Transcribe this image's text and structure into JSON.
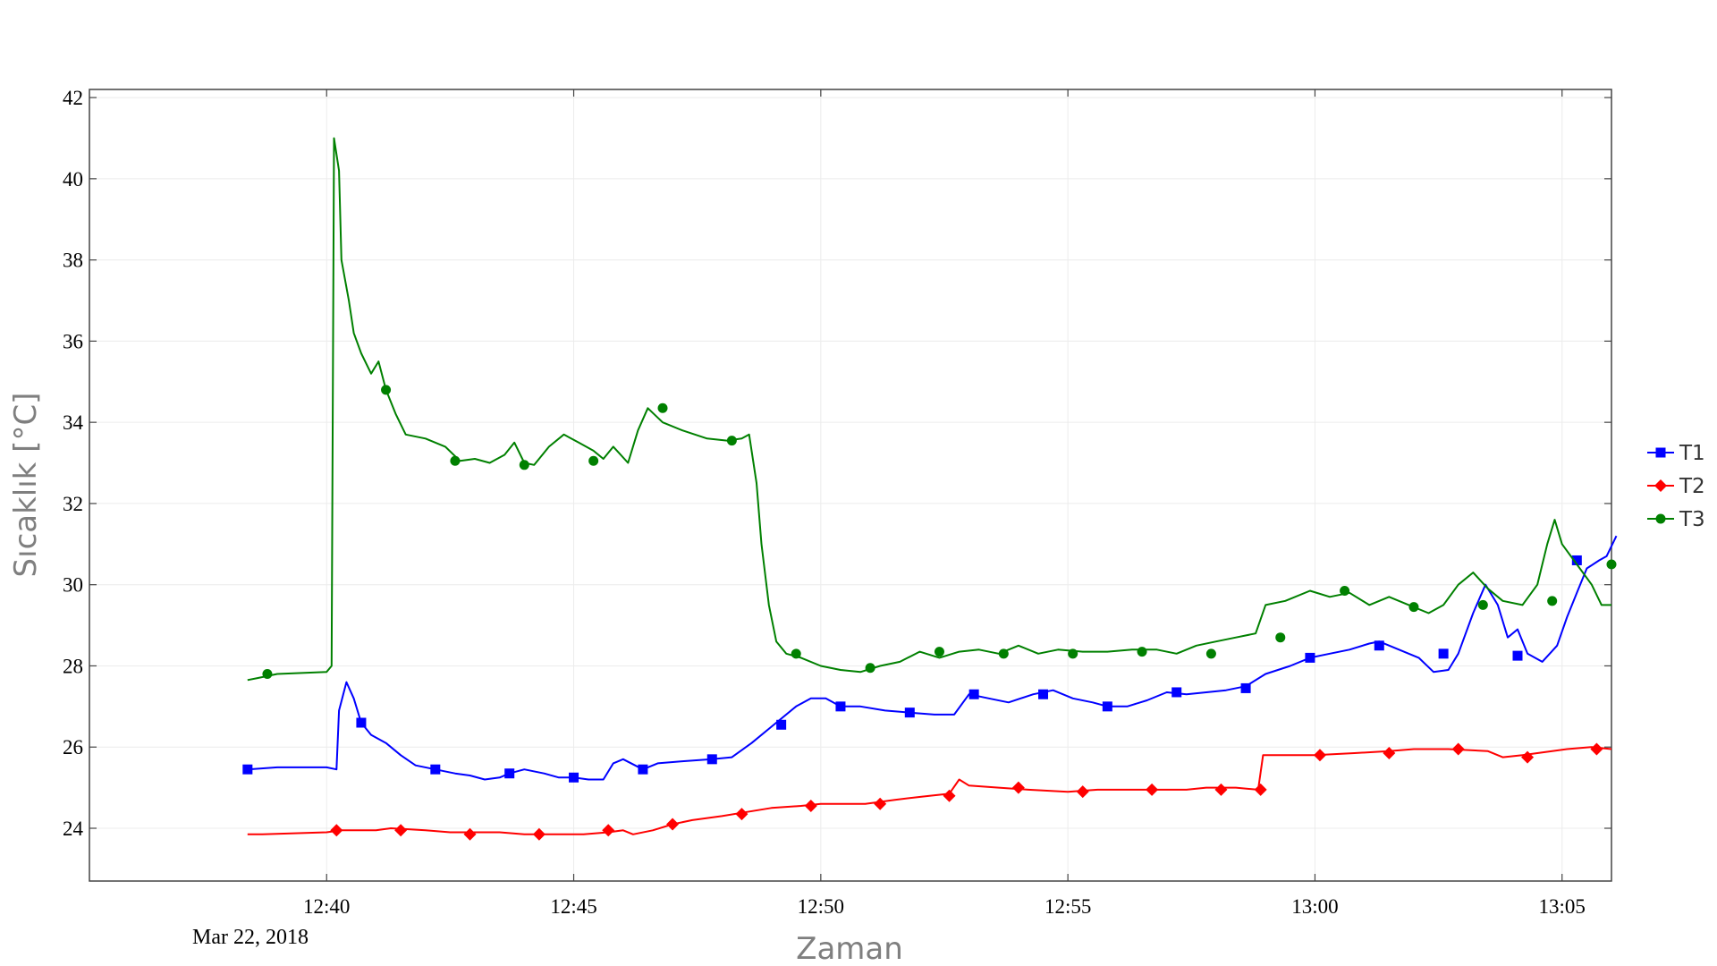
{
  "chart_data": {
    "type": "line",
    "xlabel": "Zaman",
    "ylabel": "Sıcaklık [°C]",
    "date_label": "Mar 22, 2018",
    "x_ticks": [
      "12:40",
      "12:45",
      "12:50",
      "12:55",
      "13:00",
      "13:05"
    ],
    "x_tick_minutes": [
      40,
      45,
      50,
      55,
      60,
      65
    ],
    "xlim_minutes": [
      35.2,
      66.0
    ],
    "ylim": [
      22.7,
      42.2
    ],
    "y_ticks": [
      24,
      26,
      28,
      30,
      32,
      34,
      36,
      38,
      40,
      42
    ],
    "grid": true,
    "legend_position": "right",
    "series": [
      {
        "name": "T1",
        "color": "#0000ff",
        "marker": "square",
        "points": [
          [
            38.4,
            25.45
          ],
          [
            39.0,
            25.5
          ],
          [
            40.0,
            25.5
          ],
          [
            40.2,
            25.45
          ],
          [
            40.25,
            26.9
          ],
          [
            40.4,
            27.6
          ],
          [
            40.55,
            27.2
          ],
          [
            40.7,
            26.6
          ],
          [
            40.9,
            26.3
          ],
          [
            41.2,
            26.1
          ],
          [
            41.5,
            25.8
          ],
          [
            41.8,
            25.55
          ],
          [
            42.2,
            25.45
          ],
          [
            42.6,
            25.35
          ],
          [
            42.9,
            25.3
          ],
          [
            43.2,
            25.2
          ],
          [
            43.5,
            25.25
          ],
          [
            43.7,
            25.35
          ],
          [
            44.0,
            25.45
          ],
          [
            44.4,
            25.35
          ],
          [
            44.7,
            25.25
          ],
          [
            45.0,
            25.25
          ],
          [
            45.3,
            25.2
          ],
          [
            45.6,
            25.2
          ],
          [
            45.8,
            25.6
          ],
          [
            46.0,
            25.7
          ],
          [
            46.4,
            25.45
          ],
          [
            46.7,
            25.6
          ],
          [
            47.2,
            25.65
          ],
          [
            47.8,
            25.7
          ],
          [
            48.2,
            25.75
          ],
          [
            48.6,
            26.1
          ],
          [
            49.0,
            26.5
          ],
          [
            49.5,
            27.0
          ],
          [
            49.8,
            27.2
          ],
          [
            50.1,
            27.2
          ],
          [
            50.4,
            27.0
          ],
          [
            50.8,
            27.0
          ],
          [
            51.3,
            26.9
          ],
          [
            51.8,
            26.85
          ],
          [
            52.3,
            26.8
          ],
          [
            52.7,
            26.8
          ],
          [
            53.0,
            27.3
          ],
          [
            53.4,
            27.2
          ],
          [
            53.8,
            27.1
          ],
          [
            54.3,
            27.3
          ],
          [
            54.7,
            27.4
          ],
          [
            55.1,
            27.2
          ],
          [
            55.5,
            27.1
          ],
          [
            55.8,
            27.0
          ],
          [
            56.2,
            27.0
          ],
          [
            56.6,
            27.15
          ],
          [
            57.0,
            27.35
          ],
          [
            57.4,
            27.3
          ],
          [
            57.8,
            27.35
          ],
          [
            58.2,
            27.4
          ],
          [
            58.6,
            27.5
          ],
          [
            59.0,
            27.8
          ],
          [
            59.5,
            28.0
          ],
          [
            59.9,
            28.2
          ],
          [
            60.3,
            28.3
          ],
          [
            60.7,
            28.4
          ],
          [
            61.1,
            28.55
          ],
          [
            61.3,
            28.6
          ],
          [
            61.7,
            28.4
          ],
          [
            62.1,
            28.2
          ],
          [
            62.4,
            27.85
          ],
          [
            62.7,
            27.9
          ],
          [
            62.9,
            28.3
          ],
          [
            63.2,
            29.3
          ],
          [
            63.45,
            30.0
          ],
          [
            63.7,
            29.5
          ],
          [
            63.9,
            28.7
          ],
          [
            64.1,
            28.9
          ],
          [
            64.3,
            28.3
          ],
          [
            64.6,
            28.1
          ],
          [
            64.9,
            28.5
          ],
          [
            65.1,
            29.2
          ],
          [
            65.3,
            29.8
          ],
          [
            65.5,
            30.4
          ],
          [
            65.75,
            30.6
          ],
          [
            65.9,
            30.7
          ],
          [
            66.1,
            31.2
          ]
        ],
        "markers": [
          [
            38.4,
            25.45
          ],
          [
            40.7,
            26.6
          ],
          [
            42.2,
            25.45
          ],
          [
            43.7,
            25.35
          ],
          [
            45.0,
            25.25
          ],
          [
            46.4,
            25.45
          ],
          [
            47.8,
            25.7
          ],
          [
            49.2,
            26.55
          ],
          [
            50.4,
            27.0
          ],
          [
            51.8,
            26.85
          ],
          [
            53.1,
            27.3
          ],
          [
            54.5,
            27.3
          ],
          [
            55.8,
            27.0
          ],
          [
            57.2,
            27.35
          ],
          [
            58.6,
            27.45
          ],
          [
            59.9,
            28.2
          ],
          [
            61.3,
            28.5
          ],
          [
            62.6,
            28.3
          ],
          [
            64.1,
            28.25
          ],
          [
            65.3,
            30.6
          ]
        ]
      },
      {
        "name": "T2",
        "color": "#ff0000",
        "marker": "diamond",
        "points": [
          [
            38.4,
            23.85
          ],
          [
            38.7,
            23.85
          ],
          [
            40.0,
            23.9
          ],
          [
            40.3,
            23.95
          ],
          [
            41.0,
            23.95
          ],
          [
            41.3,
            24.0
          ],
          [
            42.0,
            23.95
          ],
          [
            42.5,
            23.9
          ],
          [
            43.5,
            23.9
          ],
          [
            44.0,
            23.85
          ],
          [
            45.2,
            23.85
          ],
          [
            45.7,
            23.9
          ],
          [
            46.0,
            23.95
          ],
          [
            46.2,
            23.85
          ],
          [
            46.6,
            23.95
          ],
          [
            47.0,
            24.1
          ],
          [
            47.4,
            24.2
          ],
          [
            48.0,
            24.3
          ],
          [
            48.5,
            24.4
          ],
          [
            49.0,
            24.5
          ],
          [
            49.6,
            24.55
          ],
          [
            50.0,
            24.6
          ],
          [
            50.9,
            24.6
          ],
          [
            51.5,
            24.7
          ],
          [
            52.2,
            24.8
          ],
          [
            52.6,
            24.85
          ],
          [
            52.8,
            25.2
          ],
          [
            53.0,
            25.05
          ],
          [
            53.6,
            25.0
          ],
          [
            54.2,
            24.95
          ],
          [
            55.0,
            24.9
          ],
          [
            55.6,
            24.95
          ],
          [
            56.4,
            24.95
          ],
          [
            57.4,
            24.95
          ],
          [
            57.8,
            25.0
          ],
          [
            58.4,
            25.0
          ],
          [
            58.85,
            24.95
          ],
          [
            58.95,
            25.8
          ],
          [
            59.5,
            25.8
          ],
          [
            60.0,
            25.8
          ],
          [
            60.8,
            25.85
          ],
          [
            61.5,
            25.9
          ],
          [
            62.0,
            25.95
          ],
          [
            62.7,
            25.95
          ],
          [
            63.5,
            25.9
          ],
          [
            63.8,
            25.75
          ],
          [
            64.2,
            25.8
          ],
          [
            64.8,
            25.9
          ],
          [
            65.1,
            25.95
          ],
          [
            65.6,
            26.0
          ],
          [
            66.0,
            25.95
          ]
        ],
        "markers": [
          [
            40.2,
            23.95
          ],
          [
            41.5,
            23.95
          ],
          [
            42.9,
            23.85
          ],
          [
            44.3,
            23.85
          ],
          [
            45.7,
            23.95
          ],
          [
            47.0,
            24.1
          ],
          [
            48.4,
            24.35
          ],
          [
            49.8,
            24.55
          ],
          [
            51.2,
            24.6
          ],
          [
            52.6,
            24.8
          ],
          [
            54.0,
            25.0
          ],
          [
            55.3,
            24.9
          ],
          [
            56.7,
            24.95
          ],
          [
            58.1,
            24.95
          ],
          [
            58.9,
            24.95
          ],
          [
            60.1,
            25.8
          ],
          [
            61.5,
            25.85
          ],
          [
            62.9,
            25.95
          ],
          [
            64.3,
            25.75
          ],
          [
            65.7,
            25.95
          ]
        ]
      },
      {
        "name": "T3",
        "color": "#008000",
        "marker": "circle",
        "points": [
          [
            38.4,
            27.65
          ],
          [
            38.6,
            27.7
          ],
          [
            39.0,
            27.8
          ],
          [
            40.0,
            27.85
          ],
          [
            40.1,
            28.0
          ],
          [
            40.15,
            41.0
          ],
          [
            40.25,
            40.2
          ],
          [
            40.3,
            38.0
          ],
          [
            40.45,
            37.0
          ],
          [
            40.55,
            36.2
          ],
          [
            40.7,
            35.7
          ],
          [
            40.9,
            35.2
          ],
          [
            41.05,
            35.5
          ],
          [
            41.2,
            34.8
          ],
          [
            41.4,
            34.2
          ],
          [
            41.6,
            33.7
          ],
          [
            42.0,
            33.6
          ],
          [
            42.4,
            33.4
          ],
          [
            42.7,
            33.05
          ],
          [
            43.0,
            33.1
          ],
          [
            43.3,
            33.0
          ],
          [
            43.6,
            33.2
          ],
          [
            43.8,
            33.5
          ],
          [
            44.0,
            33.0
          ],
          [
            44.2,
            32.95
          ],
          [
            44.5,
            33.4
          ],
          [
            44.8,
            33.7
          ],
          [
            45.1,
            33.5
          ],
          [
            45.4,
            33.3
          ],
          [
            45.6,
            33.1
          ],
          [
            45.8,
            33.4
          ],
          [
            46.1,
            33.0
          ],
          [
            46.3,
            33.8
          ],
          [
            46.5,
            34.35
          ],
          [
            46.8,
            34.0
          ],
          [
            47.2,
            33.8
          ],
          [
            47.7,
            33.6
          ],
          [
            48.1,
            33.55
          ],
          [
            48.4,
            33.6
          ],
          [
            48.55,
            33.7
          ],
          [
            48.7,
            32.5
          ],
          [
            48.8,
            31.0
          ],
          [
            48.95,
            29.5
          ],
          [
            49.1,
            28.6
          ],
          [
            49.3,
            28.3
          ],
          [
            49.6,
            28.2
          ],
          [
            50.0,
            28.0
          ],
          [
            50.4,
            27.9
          ],
          [
            50.8,
            27.85
          ],
          [
            51.2,
            28.0
          ],
          [
            51.6,
            28.1
          ],
          [
            52.0,
            28.35
          ],
          [
            52.4,
            28.2
          ],
          [
            52.8,
            28.35
          ],
          [
            53.2,
            28.4
          ],
          [
            53.6,
            28.3
          ],
          [
            54.0,
            28.5
          ],
          [
            54.4,
            28.3
          ],
          [
            54.8,
            28.4
          ],
          [
            55.3,
            28.35
          ],
          [
            55.8,
            28.35
          ],
          [
            56.3,
            28.4
          ],
          [
            56.8,
            28.4
          ],
          [
            57.2,
            28.3
          ],
          [
            57.6,
            28.5
          ],
          [
            58.0,
            28.6
          ],
          [
            58.4,
            28.7
          ],
          [
            58.8,
            28.8
          ],
          [
            59.0,
            29.5
          ],
          [
            59.4,
            29.6
          ],
          [
            59.9,
            29.85
          ],
          [
            60.3,
            29.7
          ],
          [
            60.7,
            29.8
          ],
          [
            61.1,
            29.5
          ],
          [
            61.5,
            29.7
          ],
          [
            61.9,
            29.5
          ],
          [
            62.3,
            29.3
          ],
          [
            62.6,
            29.5
          ],
          [
            62.9,
            30.0
          ],
          [
            63.2,
            30.3
          ],
          [
            63.5,
            29.9
          ],
          [
            63.8,
            29.6
          ],
          [
            64.2,
            29.5
          ],
          [
            64.5,
            30.0
          ],
          [
            64.7,
            31.0
          ],
          [
            64.85,
            31.6
          ],
          [
            65.0,
            31.0
          ],
          [
            65.3,
            30.5
          ],
          [
            65.6,
            30.0
          ],
          [
            65.8,
            29.5
          ],
          [
            66.0,
            29.5
          ]
        ],
        "markers": [
          [
            38.8,
            27.8
          ],
          [
            41.2,
            34.8
          ],
          [
            42.6,
            33.05
          ],
          [
            44.0,
            32.95
          ],
          [
            45.4,
            33.05
          ],
          [
            46.8,
            34.35
          ],
          [
            48.2,
            33.55
          ],
          [
            49.5,
            28.3
          ],
          [
            51.0,
            27.95
          ],
          [
            52.4,
            28.35
          ],
          [
            53.7,
            28.3
          ],
          [
            55.1,
            28.3
          ],
          [
            56.5,
            28.35
          ],
          [
            57.9,
            28.3
          ],
          [
            59.3,
            28.7
          ],
          [
            60.6,
            29.85
          ],
          [
            62.0,
            29.45
          ],
          [
            63.4,
            29.5
          ],
          [
            64.8,
            29.6
          ],
          [
            66.0,
            30.5
          ]
        ]
      }
    ]
  }
}
